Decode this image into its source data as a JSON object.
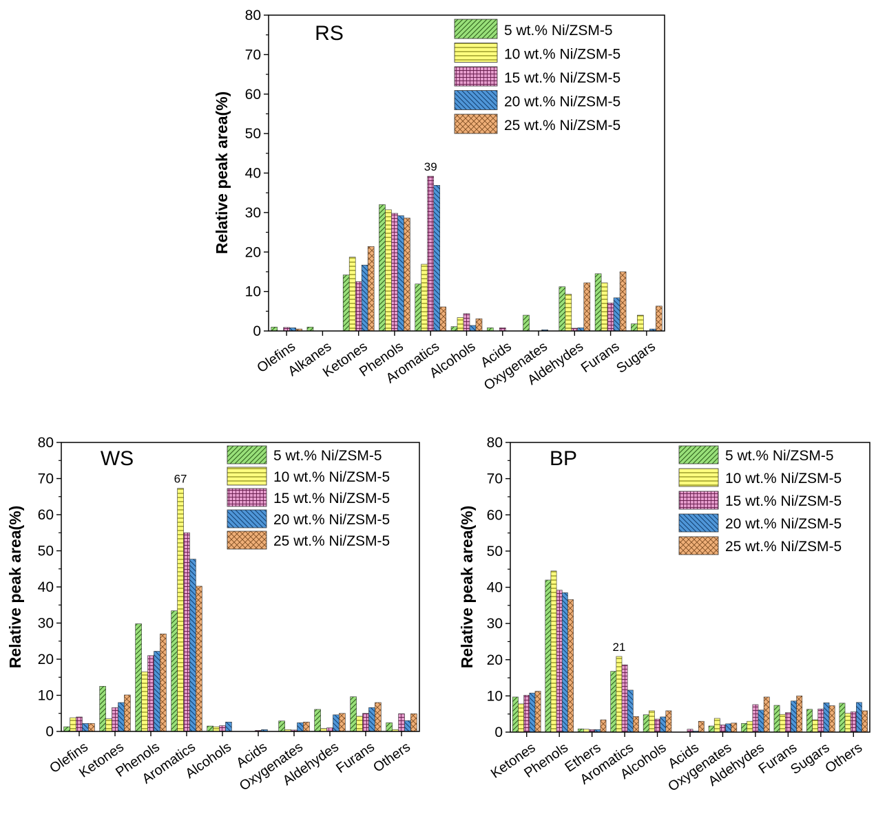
{
  "legend_labels": [
    "5  wt.% Ni/ZSM-5",
    "10 wt.% Ni/ZSM-5",
    "15 wt.% Ni/ZSM-5",
    "20 wt.% Ni/ZSM-5",
    "25 wt.% Ni/ZSM-5"
  ],
  "series_colors": [
    "#99e07a",
    "#ffff7f",
    "#e59ccc",
    "#4f96d8",
    "#efaf78"
  ],
  "chart_data": [
    {
      "type": "bar",
      "title": "RS",
      "ylabel": "Relative peak area(%)",
      "xlabel": "",
      "ylim": [
        0,
        80
      ],
      "yticks": [
        "0",
        "10",
        "20",
        "30",
        "40",
        "50",
        "60",
        "70",
        "80"
      ],
      "categories": [
        "Olefins",
        "Alkanes",
        "Ketones",
        "Phenols",
        "Aromatics",
        "Alcohols",
        "Acids",
        "Oxygenates",
        "Aldehydes",
        "Furans",
        "Sugars"
      ],
      "annotation": {
        "text": "39",
        "category": "Aromatics",
        "series": 2,
        "value": 39.2
      },
      "series": [
        {
          "name": "5  wt.% Ni/ZSM-5",
          "values": [
            1.0,
            1.0,
            14.2,
            32.0,
            11.9,
            1.1,
            0.8,
            4.0,
            11.2,
            14.5,
            1.8
          ]
        },
        {
          "name": "10 wt.% Ni/ZSM-5",
          "values": [
            0,
            0,
            18.7,
            30.7,
            16.9,
            3.4,
            0,
            0,
            9.3,
            12.2,
            4.0
          ]
        },
        {
          "name": "15 wt.% Ni/ZSM-5",
          "values": [
            0.9,
            0,
            12.5,
            29.8,
            39.2,
            4.4,
            0.8,
            0,
            0.7,
            7.1,
            0
          ]
        },
        {
          "name": "20 wt.% Ni/ZSM-5",
          "values": [
            0.8,
            0,
            16.7,
            29.2,
            36.9,
            1.4,
            0,
            0.3,
            0.8,
            8.4,
            0.5
          ]
        },
        {
          "name": "25 wt.% Ni/ZSM-5",
          "values": [
            0.5,
            0,
            21.4,
            28.6,
            6.1,
            3.1,
            0,
            0,
            12.2,
            15.0,
            6.3
          ]
        }
      ]
    },
    {
      "type": "bar",
      "title": "WS",
      "ylabel": "Relative peak area(%)",
      "xlabel": "",
      "ylim": [
        0,
        80
      ],
      "yticks": [
        "0",
        "10",
        "20",
        "30",
        "40",
        "50",
        "60",
        "70",
        "80"
      ],
      "categories": [
        "Olefins",
        "Ketones",
        "Phenols",
        "Aromatics",
        "Alcohols",
        "Acids",
        "Oxygenates",
        "Aldehydes",
        "Furans",
        "Others"
      ],
      "annotation": {
        "text": "67",
        "category": "Aromatics",
        "series": 1,
        "value": 67.3
      },
      "series": [
        {
          "name": "5  wt.% Ni/ZSM-5",
          "values": [
            1.3,
            12.5,
            29.8,
            33.4,
            1.5,
            0,
            2.9,
            6.1,
            9.6,
            2.4
          ]
        },
        {
          "name": "10 wt.% Ni/ZSM-5",
          "values": [
            3.8,
            3.5,
            16.5,
            67.3,
            1.3,
            0,
            0.5,
            0.8,
            4.2,
            0.5
          ]
        },
        {
          "name": "15 wt.% Ni/ZSM-5",
          "values": [
            4.0,
            6.6,
            21.0,
            55.0,
            1.6,
            0.3,
            0.4,
            1.0,
            5.0,
            4.9
          ]
        },
        {
          "name": "20 wt.% Ni/ZSM-5",
          "values": [
            2.2,
            8.0,
            22.2,
            47.7,
            2.6,
            0.5,
            2.4,
            4.6,
            6.6,
            3.0
          ]
        },
        {
          "name": "25 wt.% Ni/ZSM-5",
          "values": [
            2.2,
            10.1,
            27.0,
            40.2,
            0,
            0,
            2.6,
            5.0,
            8.0,
            4.9
          ]
        }
      ]
    },
    {
      "type": "bar",
      "title": "BP",
      "ylabel": "Relative peak area(%)",
      "xlabel": "",
      "ylim": [
        0,
        80
      ],
      "yticks": [
        "0",
        "10",
        "20",
        "30",
        "40",
        "50",
        "60",
        "70",
        "80"
      ],
      "categories": [
        "Ketones",
        "Phenols",
        "Ethers",
        "Aromatics",
        "Alcohols",
        "Acids",
        "Oxygenates",
        "Aldehydes",
        "Furans",
        "Sugars",
        "Others"
      ],
      "annotation": {
        "text": "21",
        "category": "Aromatics",
        "series": 1,
        "value": 20.9
      },
      "series": [
        {
          "name": "5  wt.% Ni/ZSM-5",
          "values": [
            9.7,
            42.0,
            0.9,
            16.8,
            4.8,
            0,
            1.7,
            2.4,
            7.4,
            6.3,
            8.0
          ]
        },
        {
          "name": "10 wt.% Ni/ZSM-5",
          "values": [
            7.8,
            44.5,
            0.8,
            20.9,
            5.9,
            0,
            3.8,
            3.0,
            4.9,
            3.4,
            5.2
          ]
        },
        {
          "name": "15 wt.% Ni/ZSM-5",
          "values": [
            10.2,
            39.2,
            0.7,
            18.6,
            3.6,
            0.8,
            2.0,
            7.6,
            5.4,
            6.4,
            5.6
          ]
        },
        {
          "name": "20 wt.% Ni/ZSM-5",
          "values": [
            10.8,
            38.5,
            0.7,
            11.6,
            4.2,
            0.3,
            2.3,
            6.1,
            8.6,
            8.1,
            8.2
          ]
        },
        {
          "name": "25 wt.% Ni/ZSM-5",
          "values": [
            11.3,
            36.6,
            3.4,
            4.3,
            5.9,
            3.0,
            2.5,
            9.7,
            10.0,
            7.3,
            5.9
          ]
        }
      ]
    }
  ]
}
